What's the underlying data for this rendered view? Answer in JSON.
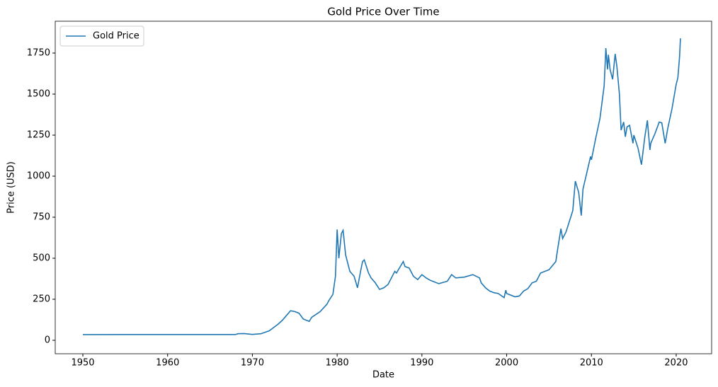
{
  "chart_data": {
    "type": "line",
    "title": "Gold Price Over Time",
    "x_label": "Date",
    "y_label": "Price (USD)",
    "x": [
      1950,
      1955,
      1960,
      1965,
      1968,
      1968.3,
      1969,
      1970,
      1971,
      1972,
      1973,
      1973.5,
      1974,
      1974.5,
      1975,
      1975.5,
      1976,
      1976.7,
      1977,
      1978,
      1978.8,
      1979,
      1979.5,
      1979.8,
      1980.0,
      1980.2,
      1980.5,
      1980.7,
      1981,
      1981.5,
      1982,
      1982.4,
      1982.8,
      1983,
      1983.2,
      1983.7,
      1984,
      1984.5,
      1985,
      1985.5,
      1986,
      1986.8,
      1987,
      1987.8,
      1988,
      1988.5,
      1989,
      1989.5,
      1990,
      1990.5,
      1991,
      1992,
      1993,
      1993.5,
      1994,
      1995,
      1996,
      1996.8,
      1997,
      1997.5,
      1998,
      1998.5,
      1999,
      1999.7,
      1999.9,
      2000,
      2001,
      2001.5,
      2002,
      2002.5,
      2003,
      2003.5,
      2004,
      2005,
      2005.8,
      2006,
      2006.4,
      2006.6,
      2007,
      2007.8,
      2008.1,
      2008.5,
      2008.8,
      2009,
      2009.9,
      2010,
      2010.5,
      2011,
      2011.5,
      2011.7,
      2011.9,
      2012,
      2012.2,
      2012.5,
      2012.8,
      2013,
      2013.3,
      2013.5,
      2013.8,
      2014,
      2014.2,
      2014.5,
      2014.9,
      2015,
      2015.5,
      2015.9,
      2016.3,
      2016.6,
      2016.9,
      2017,
      2017.5,
      2018,
      2018.3,
      2018.7,
      2019,
      2019.5,
      2019.8,
      2020,
      2020.2,
      2020.4,
      2020.5
    ],
    "series": [
      {
        "name": "Gold Price",
        "color": "#1f77b4",
        "values": [
          34.7,
          35,
          35.3,
          35.1,
          35,
          40,
          41,
          35.9,
          40,
          58,
          97,
          120,
          150,
          180,
          175,
          165,
          130,
          115,
          140,
          175,
          220,
          240,
          280,
          390,
          675,
          500,
          650,
          670,
          520,
          420,
          390,
          320,
          430,
          480,
          490,
          410,
          380,
          350,
          310,
          320,
          340,
          420,
          410,
          480,
          450,
          440,
          390,
          370,
          400,
          380,
          365,
          345,
          360,
          400,
          380,
          385,
          400,
          380,
          350,
          320,
          300,
          290,
          285,
          260,
          305,
          285,
          265,
          270,
          300,
          315,
          350,
          360,
          410,
          430,
          480,
          550,
          680,
          620,
          660,
          790,
          970,
          900,
          760,
          920,
          1120,
          1100,
          1230,
          1350,
          1550,
          1780,
          1650,
          1740,
          1650,
          1590,
          1745,
          1670,
          1500,
          1280,
          1330,
          1240,
          1300,
          1310,
          1200,
          1250,
          1170,
          1070,
          1240,
          1340,
          1160,
          1200,
          1260,
          1330,
          1325,
          1200,
          1290,
          1410,
          1500,
          1560,
          1600,
          1730,
          1840
        ]
      }
    ],
    "xlim": [
      1946.74,
      2024.18
    ],
    "xticks": [
      1950,
      1960,
      1970,
      1980,
      1990,
      2000,
      2010,
      2020
    ],
    "ylim": [
      -82,
      1944
    ],
    "yticks": [
      0,
      250,
      500,
      750,
      1000,
      1250,
      1500,
      1750
    ],
    "legend": "upper left",
    "grid": false
  }
}
